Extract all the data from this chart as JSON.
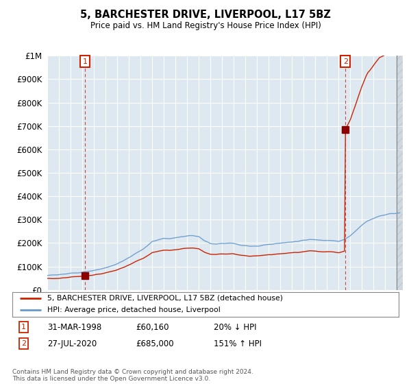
{
  "title": "5, BARCHESTER DRIVE, LIVERPOOL, L17 5BZ",
  "subtitle": "Price paid vs. HM Land Registry's House Price Index (HPI)",
  "legend_line1": "5, BARCHESTER DRIVE, LIVERPOOL, L17 5BZ (detached house)",
  "legend_line2": "HPI: Average price, detached house, Liverpool",
  "table_row1": [
    "1",
    "31-MAR-1998",
    "£60,160",
    "20% ↓ HPI"
  ],
  "table_row2": [
    "2",
    "27-JUL-2020",
    "£685,000",
    "151% ↑ HPI"
  ],
  "footnote": "Contains HM Land Registry data © Crown copyright and database right 2024.\nThis data is licensed under the Open Government Licence v3.0.",
  "hpi_color": "#6699cc",
  "sale_color": "#cc2200",
  "marker_color": "#8b0000",
  "dashed_line_color": "#cc4444",
  "grid_color": "#aaaaaa",
  "bg_color": "#dde8f0",
  "plot_bg": "#dde8f0",
  "ylim": [
    0,
    1000000
  ],
  "xlim_start": 1995.0,
  "xlim_end": 2025.5,
  "sale1_year": 1998.25,
  "sale1_price": 60160,
  "sale2_year": 2020.583,
  "sale2_price": 685000,
  "hpi_base_year": 1998.25,
  "hpi_base_value": 75000
}
